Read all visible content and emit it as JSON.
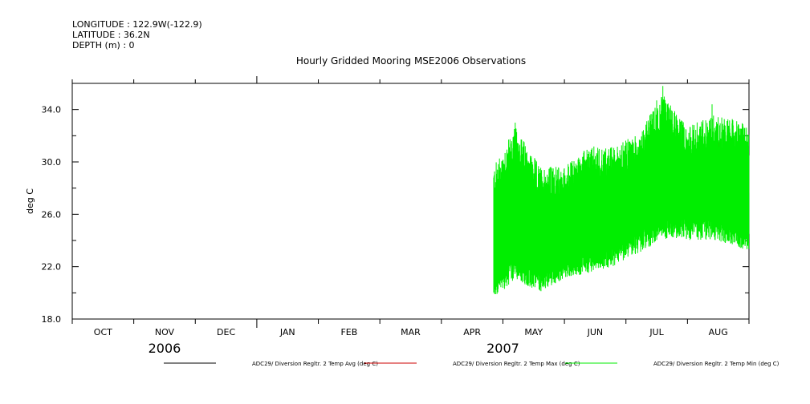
{
  "header": {
    "longitude": "LONGITUDE : 122.9W(-122.9)",
    "latitude": "LATITUDE : 36.2N",
    "depth": "DEPTH (m) : 0"
  },
  "chart_data": {
    "type": "line",
    "title": "Hourly Gridded Mooring MSE2006 Observations",
    "ylabel": "deg C",
    "xlabel": "",
    "ylim": [
      18.0,
      36.0
    ],
    "yticks": [
      18.0,
      22.0,
      26.0,
      30.0,
      34.0
    ],
    "ytick_labels": [
      "18.0",
      "22.0",
      "26.0",
      "30.0",
      "34.0"
    ],
    "x_domain": [
      0,
      11
    ],
    "month_labels": [
      "OCT",
      "NOV",
      "DEC",
      "JAN",
      "FEB",
      "MAR",
      "APR",
      "MAY",
      "JUN",
      "JUL",
      "AUG"
    ],
    "month_label_positions": [
      0.5,
      1.5,
      2.5,
      3.5,
      4.5,
      5.5,
      6.5,
      7.5,
      8.5,
      9.5,
      10.5
    ],
    "year_labels": [
      {
        "text": "2006",
        "pos": 1.5
      },
      {
        "text": "2007",
        "pos": 7.0
      }
    ],
    "legend": [
      "ADC29/ Diversion Regltr. 2 Temp Avg (deg C)",
      "ADC29/ Diversion Regltr. 2 Temp Max (deg C)",
      "ADC29/ Diversion Regltr. 2 Temp Min (deg C)"
    ],
    "series_colors": [
      "#000000",
      "#cc0000",
      "#00ee00"
    ],
    "data_start": 6.85,
    "data_end": 11.0,
    "envelope_points": [
      6.85,
      7.2,
      7.6,
      8.0,
      8.4,
      8.8,
      9.2,
      9.6,
      10.0,
      10.4,
      10.8,
      11.0
    ],
    "upper_envelope": [
      28.0,
      31.0,
      28.0,
      28.0,
      29.5,
      29.5,
      30.5,
      33.5,
      31.0,
      32.0,
      31.5,
      31.0
    ],
    "lower_envelope": [
      20.5,
      22.0,
      21.0,
      22.0,
      22.5,
      23.0,
      24.0,
      25.0,
      25.0,
      25.0,
      24.5,
      24.0
    ],
    "spikes": [
      {
        "x": 7.2,
        "y": 33.0
      },
      {
        "x": 9.6,
        "y": 35.8
      },
      {
        "x": 9.5,
        "y": 34.7
      },
      {
        "x": 10.4,
        "y": 34.4
      },
      {
        "x": 6.88,
        "y": 19.9
      },
      {
        "x": 8.9,
        "y": 30.9
      }
    ]
  }
}
